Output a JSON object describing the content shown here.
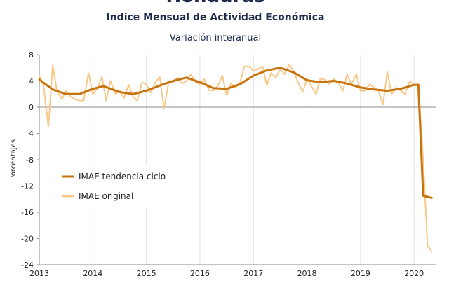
{
  "chart_data": {
    "type": "line",
    "title_cut": "Honduras",
    "title": "Indice Mensual de  Actividad Económica",
    "subtitle": "Variación interanual",
    "ylabel": "Porcentajes",
    "xlabel": "",
    "ylim": [
      -24,
      8
    ],
    "yticks": [
      8,
      4,
      0,
      -4,
      -8,
      -12,
      -16,
      -20,
      -24
    ],
    "xlim": [
      2013.0,
      2020.4167
    ],
    "xticks": [
      2013,
      2014,
      2015,
      2016,
      2017,
      2018,
      2019,
      2020
    ],
    "grid": "vertical",
    "legend_position": "center-left",
    "series": [
      {
        "name": "IMAE tendencia ciclo",
        "color": "#c8740e",
        "points": [
          [
            2013.0,
            4.2
          ],
          [
            2013.25,
            2.7
          ],
          [
            2013.5,
            2.0
          ],
          [
            2013.75,
            2.0
          ],
          [
            2014.0,
            2.8
          ],
          [
            2014.2,
            3.2
          ],
          [
            2014.5,
            2.3
          ],
          [
            2014.75,
            2.0
          ],
          [
            2015.0,
            2.5
          ],
          [
            2015.25,
            3.3
          ],
          [
            2015.5,
            4.0
          ],
          [
            2015.75,
            4.5
          ],
          [
            2016.0,
            3.8
          ],
          [
            2016.25,
            2.9
          ],
          [
            2016.5,
            2.8
          ],
          [
            2016.75,
            3.5
          ],
          [
            2017.0,
            4.8
          ],
          [
            2017.25,
            5.6
          ],
          [
            2017.5,
            6.0
          ],
          [
            2017.75,
            5.3
          ],
          [
            2018.0,
            4.1
          ],
          [
            2018.25,
            3.8
          ],
          [
            2018.5,
            4.0
          ],
          [
            2018.75,
            3.6
          ],
          [
            2019.0,
            3.0
          ],
          [
            2019.25,
            2.7
          ],
          [
            2019.5,
            2.5
          ],
          [
            2019.75,
            2.8
          ],
          [
            2020.0,
            3.4
          ],
          [
            2020.08,
            3.4
          ],
          [
            2020.17,
            -13.5
          ],
          [
            2020.33,
            -13.8
          ]
        ]
      },
      {
        "name": "IMAE original",
        "color": "#f9c98a",
        "points": [
          [
            2013.0,
            4.8
          ],
          [
            2013.08,
            3.3
          ],
          [
            2013.17,
            -3.0
          ],
          [
            2013.25,
            6.4
          ],
          [
            2013.33,
            2.5
          ],
          [
            2013.42,
            1.2
          ],
          [
            2013.5,
            2.5
          ],
          [
            2013.58,
            1.6
          ],
          [
            2013.67,
            1.2
          ],
          [
            2013.75,
            1.0
          ],
          [
            2013.83,
            1.0
          ],
          [
            2013.92,
            5.2
          ],
          [
            2014.0,
            2.0
          ],
          [
            2014.08,
            2.8
          ],
          [
            2014.17,
            4.6
          ],
          [
            2014.25,
            1.0
          ],
          [
            2014.33,
            4.0
          ],
          [
            2014.42,
            2.0
          ],
          [
            2014.5,
            2.5
          ],
          [
            2014.58,
            1.4
          ],
          [
            2014.67,
            3.4
          ],
          [
            2014.75,
            1.6
          ],
          [
            2014.83,
            1.0
          ],
          [
            2014.92,
            3.8
          ],
          [
            2015.0,
            3.5
          ],
          [
            2015.08,
            2.2
          ],
          [
            2015.17,
            3.8
          ],
          [
            2015.25,
            4.6
          ],
          [
            2015.33,
            -0.2
          ],
          [
            2015.42,
            4.0
          ],
          [
            2015.5,
            3.8
          ],
          [
            2015.58,
            4.5
          ],
          [
            2015.67,
            3.6
          ],
          [
            2015.75,
            4.0
          ],
          [
            2015.83,
            5.0
          ],
          [
            2015.92,
            3.8
          ],
          [
            2016.0,
            3.5
          ],
          [
            2016.08,
            4.3
          ],
          [
            2016.17,
            2.6
          ],
          [
            2016.25,
            2.5
          ],
          [
            2016.33,
            3.2
          ],
          [
            2016.42,
            4.8
          ],
          [
            2016.5,
            1.8
          ],
          [
            2016.58,
            3.6
          ],
          [
            2016.67,
            3.0
          ],
          [
            2016.75,
            3.8
          ],
          [
            2016.83,
            6.2
          ],
          [
            2016.92,
            6.2
          ],
          [
            2017.0,
            5.5
          ],
          [
            2017.08,
            5.8
          ],
          [
            2017.17,
            6.2
          ],
          [
            2017.25,
            3.3
          ],
          [
            2017.33,
            5.2
          ],
          [
            2017.42,
            4.5
          ],
          [
            2017.5,
            5.8
          ],
          [
            2017.58,
            5.0
          ],
          [
            2017.67,
            6.5
          ],
          [
            2017.75,
            5.5
          ],
          [
            2017.83,
            3.8
          ],
          [
            2017.92,
            2.3
          ],
          [
            2018.0,
            4.3
          ],
          [
            2018.08,
            3.2
          ],
          [
            2018.17,
            2.0
          ],
          [
            2018.25,
            4.4
          ],
          [
            2018.33,
            4.2
          ],
          [
            2018.42,
            3.5
          ],
          [
            2018.5,
            4.3
          ],
          [
            2018.58,
            3.8
          ],
          [
            2018.67,
            2.5
          ],
          [
            2018.75,
            5.0
          ],
          [
            2018.83,
            3.5
          ],
          [
            2018.92,
            5.0
          ],
          [
            2019.0,
            2.5
          ],
          [
            2019.08,
            2.5
          ],
          [
            2019.17,
            3.5
          ],
          [
            2019.25,
            3.0
          ],
          [
            2019.33,
            2.6
          ],
          [
            2019.42,
            0.4
          ],
          [
            2019.5,
            5.4
          ],
          [
            2019.58,
            2.0
          ],
          [
            2019.67,
            3.0
          ],
          [
            2019.75,
            2.5
          ],
          [
            2019.83,
            2.0
          ],
          [
            2019.92,
            4.0
          ],
          [
            2020.0,
            3.3
          ],
          [
            2020.08,
            3.5
          ],
          [
            2020.17,
            -8.0
          ],
          [
            2020.25,
            -21.0
          ],
          [
            2020.33,
            -22.0
          ]
        ]
      }
    ]
  }
}
